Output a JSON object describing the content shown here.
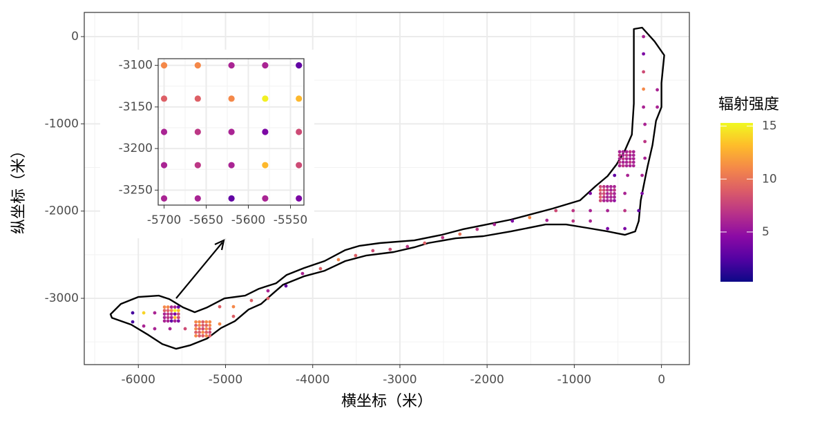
{
  "chart_data": [
    {
      "type": "scatter",
      "xlabel": "横坐标（米）",
      "ylabel": "纵坐标（米）",
      "xlim": [
        -6620,
        320
      ],
      "ylim": [
        -3760,
        277
      ],
      "xticks": [
        -6000,
        -5000,
        -4000,
        -3000,
        -2000,
        -1000,
        0
      ],
      "yticks": [
        -3000,
        -2000,
        -1000,
        0
      ],
      "xminor": [
        -6500,
        -5500,
        -4500,
        -3500,
        -2500,
        -1500,
        -500
      ],
      "yminor": [
        -3500,
        -2500,
        -1500,
        -500
      ],
      "grid": true,
      "colorbar": {
        "title": "辐射强度",
        "lim": [
          0.3,
          15.3
        ],
        "ticks": [
          5,
          10,
          15
        ],
        "colors": [
          "#0d0887",
          "#5302a3",
          "#8b0aa5",
          "#b83289",
          "#db5c68",
          "#f48849",
          "#febc2a",
          "#f0f921"
        ]
      },
      "outline": {
        "x": [
          -6319,
          -6200,
          -6002,
          -5764,
          -5645,
          -5487,
          -5353,
          -5210,
          -5012,
          -4775,
          -4616,
          -4418,
          -4299,
          -4102,
          -3864,
          -3626,
          -3468,
          -3231,
          -2835,
          -2518,
          -2280,
          -2043,
          -1726,
          -1251,
          -934,
          -760,
          -618,
          -515,
          -420,
          -340,
          -317,
          -317,
          -317,
          -222,
          -79,
          32,
          0,
          0,
          -63,
          -103,
          -158,
          -182,
          -238,
          -261,
          -301,
          -420,
          -618,
          -855,
          -1093,
          -1330,
          -1726,
          -2043,
          -2360,
          -2676,
          -2835,
          -3072,
          -3389,
          -3626,
          -3864,
          -4102,
          -4339,
          -4458,
          -4592,
          -4735,
          -4893,
          -5052,
          -5210,
          -5408,
          -5566,
          -5725,
          -5883,
          -6081,
          -6303
        ],
        "y": [
          -3183,
          -3064,
          -2985,
          -2969,
          -3009,
          -3104,
          -3159,
          -3104,
          -3001,
          -2969,
          -2890,
          -2827,
          -2732,
          -2653,
          -2573,
          -2447,
          -2399,
          -2367,
          -2336,
          -2272,
          -2209,
          -2162,
          -2098,
          -1972,
          -1877,
          -1718,
          -1599,
          -1465,
          -1306,
          -1124,
          -768,
          -372,
          87,
          103,
          -55,
          -214,
          -531,
          -808,
          -966,
          -1243,
          -1481,
          -1599,
          -1877,
          -2114,
          -2233,
          -2273,
          -2233,
          -2193,
          -2154,
          -2154,
          -2233,
          -2288,
          -2312,
          -2367,
          -2415,
          -2470,
          -2510,
          -2573,
          -2684,
          -2748,
          -2843,
          -2946,
          -3064,
          -3128,
          -3262,
          -3341,
          -3460,
          -3539,
          -3579,
          -3524,
          -3421,
          -3302,
          -3223
        ]
      },
      "x": [
        -6065,
        -6065,
        -5938,
        -5938,
        -5812,
        -5812,
        -5637,
        -5463,
        -5067,
        -5067,
        -4909,
        -4909,
        -4703,
        -4513,
        -4513,
        -4307,
        -4117,
        -3911,
        -3705,
        -3508,
        -3310,
        -3112,
        -2914,
        -2716,
        -2510,
        -2312,
        -2114,
        -1916,
        -1710,
        -1512,
        -1314,
        -1211,
        -1013,
        -1013,
        -816,
        -816,
        -816,
        -618,
        -618,
        -420,
        -420,
        -261,
        -222,
        -420,
        -538,
        -388,
        -222,
        -190,
        -190,
        -190,
        -206,
        -206,
        -206,
        -206,
        -206,
        -48,
        -48,
        -5700,
        -5660,
        -5620,
        -5580,
        -5540,
        -5700,
        -5660,
        -5620,
        -5580,
        -5540,
        -5700,
        -5660,
        -5620,
        -5580,
        -5540,
        -5700,
        -5660,
        -5620,
        -5580,
        -5540,
        -5700,
        -5660,
        -5620,
        -5580,
        -5540,
        -5340,
        -5300,
        -5260,
        -5220,
        -5180,
        -5340,
        -5300,
        -5260,
        -5220,
        -5180,
        -5340,
        -5300,
        -5260,
        -5220,
        -5180,
        -5340,
        -5300,
        -5260,
        -5220,
        -5180,
        -5340,
        -5300,
        -5260,
        -5220,
        -5180,
        -700,
        -660,
        -620,
        -580,
        -540,
        -700,
        -660,
        -620,
        -580,
        -540,
        -700,
        -660,
        -620,
        -580,
        -540,
        -700,
        -660,
        -620,
        -580,
        -540,
        -700,
        -660,
        -620,
        -580,
        -540,
        -480,
        -440,
        -400,
        -360,
        -320,
        -480,
        -440,
        -400,
        -360,
        -320,
        -480,
        -440,
        -400,
        -360,
        -320,
        -480,
        -440,
        -400,
        -360,
        -320,
        -480,
        -440,
        -400,
        -360,
        -320
      ],
      "y": [
        -3167,
        -3270,
        -3167,
        -3318,
        -3167,
        -3349,
        -3349,
        -3349,
        -3096,
        -3294,
        -3096,
        -3207,
        -3025,
        -2914,
        -3001,
        -2858,
        -2716,
        -2660,
        -2557,
        -2510,
        -2454,
        -2439,
        -2407,
        -2367,
        -2304,
        -2264,
        -2209,
        -2154,
        -2114,
        -2074,
        -2106,
        -1995,
        -1995,
        -2114,
        -1995,
        -2114,
        -1797,
        -1995,
        -2201,
        -1995,
        -2201,
        -1995,
        -1797,
        -1797,
        -1591,
        -1591,
        -1591,
        -1394,
        -1203,
        -1006,
        -808,
        -602,
        -404,
        -198,
        0,
        -610,
        -808,
        -3100,
        -3100,
        -3100,
        -3100,
        -3100,
        -3140,
        -3140,
        -3140,
        -3140,
        -3140,
        -3180,
        -3180,
        -3180,
        -3180,
        -3180,
        -3220,
        -3220,
        -3220,
        -3220,
        -3220,
        -3260,
        -3260,
        -3260,
        -3260,
        -3260,
        -3270,
        -3270,
        -3270,
        -3270,
        -3270,
        -3310,
        -3310,
        -3310,
        -3310,
        -3310,
        -3350,
        -3350,
        -3350,
        -3350,
        -3350,
        -3390,
        -3390,
        -3390,
        -3390,
        -3390,
        -3430,
        -3430,
        -3430,
        -3430,
        -3430,
        -1720,
        -1720,
        -1720,
        -1720,
        -1720,
        -1760,
        -1760,
        -1760,
        -1760,
        -1760,
        -1800,
        -1800,
        -1800,
        -1800,
        -1800,
        -1840,
        -1840,
        -1840,
        -1840,
        -1840,
        -1880,
        -1880,
        -1880,
        -1880,
        -1880,
        -1320,
        -1320,
        -1320,
        -1320,
        -1320,
        -1360,
        -1360,
        -1360,
        -1360,
        -1360,
        -1400,
        -1400,
        -1400,
        -1400,
        -1400,
        -1440,
        -1440,
        -1440,
        -1440,
        -1440,
        -1480,
        -1480,
        -1480,
        -1480,
        -1480
      ],
      "values": [
        2,
        2,
        14,
        6,
        6,
        6,
        6,
        8,
        9,
        11,
        11,
        9,
        9,
        6,
        9,
        3,
        6,
        9,
        11,
        9,
        8,
        8,
        7,
        9,
        7,
        10,
        7,
        6,
        4,
        11,
        6,
        8,
        7,
        7,
        6,
        6,
        4,
        6,
        4,
        7,
        4,
        3,
        4,
        6,
        3,
        6,
        6,
        6,
        7,
        6,
        6,
        11,
        8,
        4,
        6,
        6,
        6,
        11,
        11,
        6,
        6,
        3,
        9,
        9,
        11,
        15,
        13,
        6,
        7,
        6,
        4,
        8,
        6,
        7,
        6,
        13,
        8,
        6,
        6,
        3,
        6,
        4,
        11,
        11,
        9,
        11,
        11,
        9,
        11,
        9,
        9,
        11,
        11,
        9,
        8,
        11,
        9,
        9,
        9,
        11,
        9,
        8,
        11,
        9,
        9,
        11,
        9,
        8,
        7,
        6,
        6,
        6,
        9,
        8,
        7,
        6,
        7,
        8,
        8,
        6,
        7,
        6,
        9,
        7,
        6,
        6,
        6,
        8,
        6,
        6,
        6,
        5,
        6,
        6,
        6,
        7,
        6,
        7,
        6,
        7,
        6,
        6,
        6,
        7,
        6,
        6,
        6,
        7,
        6,
        6,
        7,
        6,
        6,
        7,
        6,
        6,
        6
      ]
    },
    {
      "type": "scatter",
      "xlim": [
        -5707,
        -5534
      ],
      "ylim": [
        -3268,
        -3092
      ],
      "xticks": [
        -5700,
        -5650,
        -5600,
        -5550
      ],
      "yticks": [
        -3100,
        -3150,
        -3200,
        -3250
      ],
      "xminor": [
        -5675,
        -5625,
        -5575
      ],
      "yminor": [
        -3125,
        -3175,
        -3225
      ],
      "grid": true,
      "x": [
        -5700,
        -5660,
        -5620,
        -5580,
        -5540,
        -5700,
        -5660,
        -5620,
        -5580,
        -5540,
        -5700,
        -5660,
        -5620,
        -5580,
        -5540,
        -5700,
        -5660,
        -5620,
        -5580,
        -5540,
        -5700,
        -5660,
        -5620,
        -5580,
        -5540
      ],
      "y": [
        -3100,
        -3100,
        -3100,
        -3100,
        -3100,
        -3140,
        -3140,
        -3140,
        -3140,
        -3140,
        -3180,
        -3180,
        -3180,
        -3180,
        -3180,
        -3220,
        -3220,
        -3220,
        -3220,
        -3220,
        -3260,
        -3260,
        -3260,
        -3260,
        -3260
      ],
      "values": [
        11,
        11,
        6,
        6,
        3,
        9,
        9,
        11,
        15,
        13,
        6,
        7,
        6,
        4,
        8,
        6,
        7,
        6,
        13,
        8,
        6,
        6,
        3,
        6,
        4
      ]
    }
  ]
}
